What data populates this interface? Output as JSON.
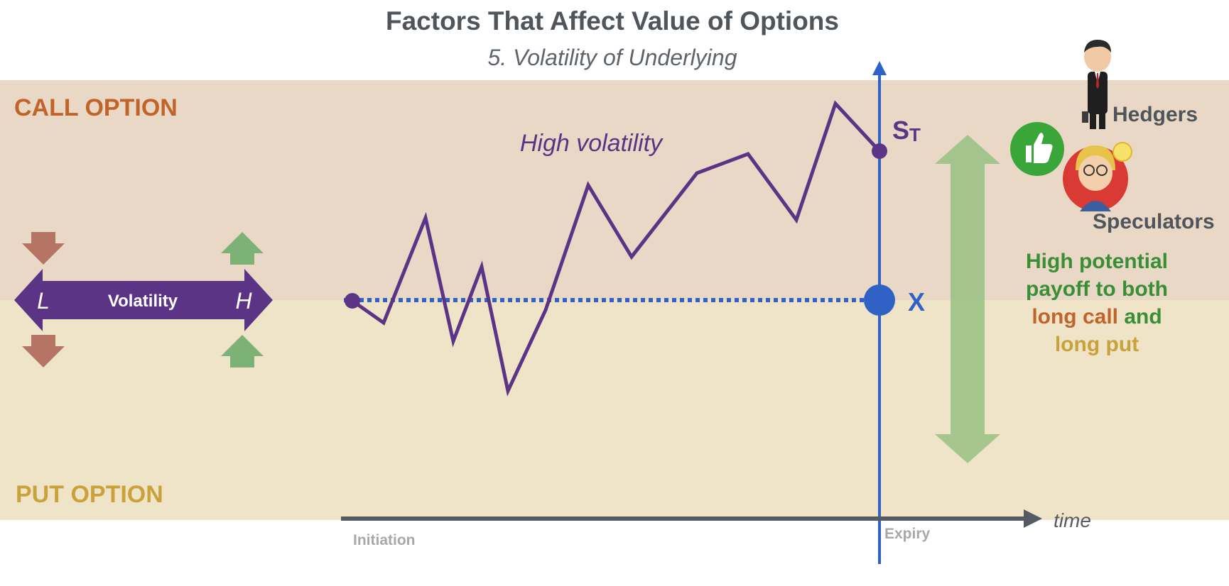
{
  "title": "Factors That Affect Value of Options",
  "subtitle": "5. Volatility of Underlying",
  "zones": {
    "call_label": "CALL OPTION",
    "put_label": "PUT OPTION"
  },
  "volatility_arrow": {
    "label": "Volatility",
    "low": "L",
    "high": "H"
  },
  "path_label": "High volatility",
  "st_label": "S",
  "st_sub": "T",
  "strike_label": "X",
  "axis": {
    "time": "time",
    "initiation": "Initiation",
    "expiry": "Expiry"
  },
  "participants": {
    "hedgers": "Hedgers",
    "speculators": "Speculators"
  },
  "payoff_note": {
    "line1": "High potential",
    "line2": "payoff to both",
    "long_call": "long call",
    "and": "and",
    "long_put": "long put"
  },
  "colors": {
    "call_zone": "#e9d8c6",
    "put_zone": "#efe4c8",
    "call_text": "#c0642a",
    "put_text": "#c9a23c",
    "path": "#5b3486",
    "strike": "#2f62c4",
    "axis": "#555b63",
    "green_text": "#3a8f35",
    "green_arrow": "#92bf7f",
    "down_arrow": "#b57464",
    "up_arrow": "#7db276",
    "title": "#50555c"
  }
}
